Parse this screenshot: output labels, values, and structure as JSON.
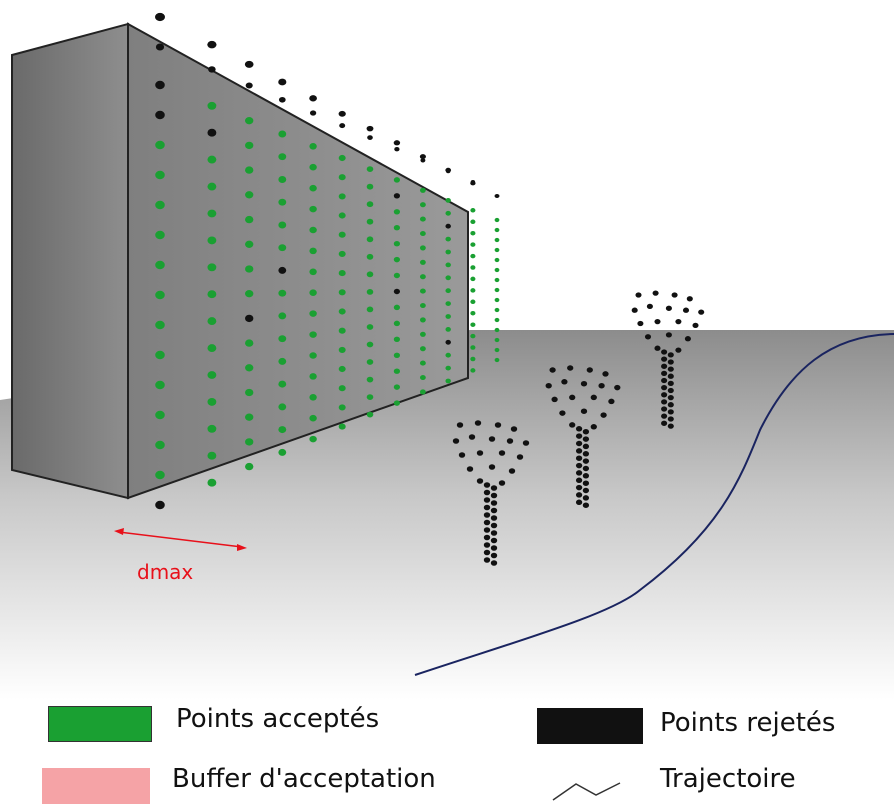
{
  "annotation": {
    "label": "dmax"
  },
  "legend": {
    "accepted": {
      "label": "Points acceptés"
    },
    "rejected": {
      "label": "Points rejetés"
    },
    "buffer": {
      "label": "Buffer d'acceptation"
    },
    "trajectory": {
      "label": "Trajectoire"
    }
  },
  "colors": {
    "accepted": "#1aa032",
    "rejected": "#111111",
    "buffer": "#f5a3a6",
    "trajectory": "#1a2460",
    "dmax": "#e8101a",
    "wall": "#8a8a8a"
  }
}
